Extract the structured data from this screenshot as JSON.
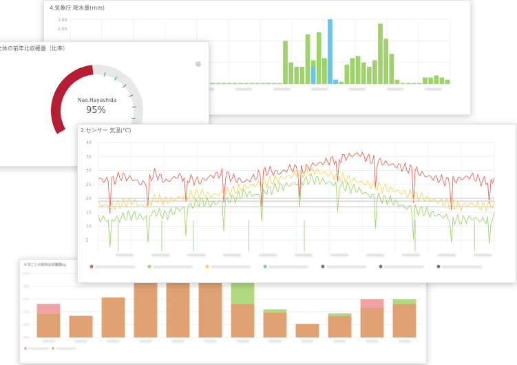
{
  "cards": {
    "rainfall": {
      "title": "4.気象庁 降水量(mm)"
    },
    "gauge": {
      "title": "全体の前年比収穫量（比率）",
      "user_name": "Nao.Hayashida",
      "value_text": "95%",
      "value": 95,
      "nav_icon": "chevron-left-icon"
    },
    "temperature": {
      "title": "2.センサー 気温(℃)"
    },
    "harvest": {
      "title": "4.月ごとの前年比収穫量kg"
    }
  },
  "colors": {
    "green": "#9ed36a",
    "blue": "#6ec3ea",
    "red": "#e2665a",
    "yellow": "#f4d35e",
    "gauge_red": "#b51e32",
    "gauge_track": "#e8e8e8",
    "gauge_tick": "#3a8a5a",
    "bar_orange": "#e0a273",
    "bar_pink": "#f2a3a3",
    "bar_green": "#b1d97f"
  },
  "chart_data": [
    {
      "type": "bar",
      "title": "4.気象庁 降水量(mm)",
      "ylim": [
        0,
        3
      ],
      "y_ticks": [
        "3.00",
        "2.50"
      ],
      "series": [
        {
          "values": [
            0.05,
            0.05,
            0.05,
            0.05,
            0.05,
            0.05,
            0.05,
            0.05,
            0.05,
            0.05,
            0.05,
            0.05,
            0.05,
            0.05,
            0.05,
            0.05,
            0.05,
            0.05,
            0.05,
            0.05,
            0.05,
            0.05,
            0.05,
            0.05,
            0.05,
            0.05,
            0.05,
            0.05,
            0.05,
            0.05,
            0.05,
            0.05,
            0.05,
            0.05,
            0.05,
            0.05,
            0.05,
            0.05,
            2.0,
            1.0,
            0.8,
            0.8,
            2.3,
            1.1,
            2.4,
            1.2,
            1.1,
            0.2,
            0.1,
            0.9,
            1.2,
            1.3,
            1.0,
            0.8,
            1.1,
            2.8,
            2.1,
            1.4,
            0.2,
            0.05,
            0.05,
            0.05,
            0.05,
            0.3,
            0.3,
            0.4,
            0.3,
            0.2
          ]
        },
        {
          "values": [
            0,
            0,
            0,
            0,
            0,
            0,
            0,
            0,
            0,
            0,
            0,
            0,
            0,
            0,
            0,
            0,
            0,
            0,
            0,
            0,
            0,
            0,
            0,
            0,
            0,
            0,
            0,
            0,
            0,
            0,
            0,
            0,
            0,
            0,
            0,
            0,
            0,
            0,
            0,
            0,
            0,
            0,
            0,
            0.8,
            0,
            0,
            3.0,
            0.2,
            0,
            0,
            0,
            0,
            0,
            0,
            0,
            0,
            0,
            0,
            0,
            0,
            0,
            0,
            0,
            0,
            0,
            0,
            0,
            0
          ]
        }
      ]
    },
    {
      "type": "line",
      "title": "2.センサー 気温(℃)",
      "ylim": [
        0,
        40
      ],
      "y_ticks": [
        "40",
        "35",
        "30",
        "25",
        "20",
        "15",
        "10",
        "5"
      ],
      "series": [
        {
          "values": [
            27,
            26,
            28,
            27,
            25,
            29,
            26,
            28,
            27,
            26,
            28,
            29,
            27,
            26,
            28,
            30,
            29,
            31,
            30,
            32,
            33,
            34,
            35,
            36,
            34,
            33,
            32,
            31,
            30,
            28,
            27,
            26,
            27,
            28,
            26,
            27
          ]
        },
        {
          "values": [
            18,
            17,
            18,
            19,
            17,
            20,
            19,
            20,
            21,
            22,
            21,
            22,
            23,
            24,
            25,
            26,
            27,
            28,
            29,
            30,
            29,
            28,
            27,
            26,
            25,
            24,
            23,
            22,
            21,
            20,
            19,
            18,
            17,
            18,
            17,
            18
          ]
        },
        {
          "values": [
            13,
            12,
            13,
            14,
            13,
            15,
            14,
            16,
            17,
            19,
            18,
            19,
            20,
            22,
            21,
            23,
            24,
            25,
            26,
            27,
            26,
            25,
            24,
            23,
            21,
            20,
            19,
            17,
            16,
            15,
            14,
            13,
            12,
            13,
            12,
            13
          ]
        }
      ]
    },
    {
      "type": "bar",
      "title": "4.月ごとの前年比収穫量kg",
      "series": [
        {
          "values": [
            30,
            27,
            50,
            68,
            72,
            68,
            42,
            31,
            17,
            27,
            37,
            42
          ]
        },
        {
          "values": [
            12,
            0,
            0,
            4,
            10,
            0,
            0,
            0,
            0,
            0,
            11,
            0
          ]
        },
        {
          "values": [
            0,
            0,
            0,
            0,
            0,
            10,
            36,
            4,
            0,
            3,
            0,
            6
          ]
        }
      ]
    }
  ]
}
